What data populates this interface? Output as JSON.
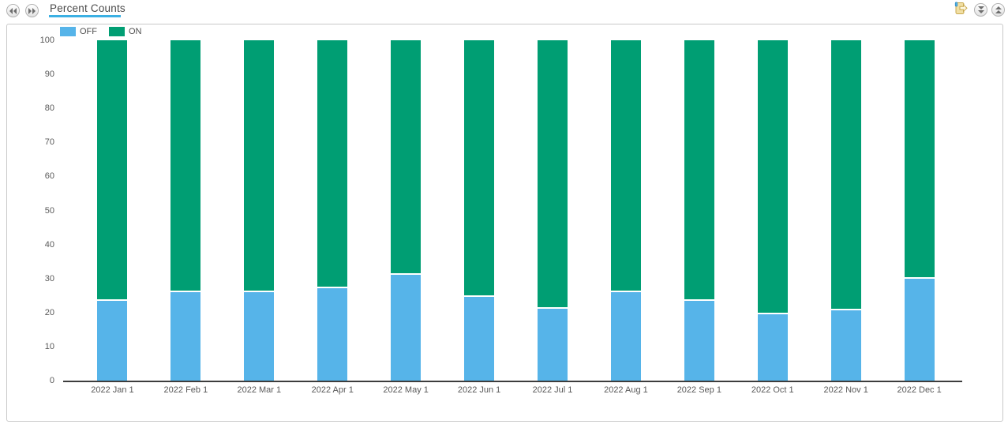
{
  "toolbar": {
    "tab_label": "Percent Counts",
    "accent_color": "#3bb0e3"
  },
  "icons": {
    "nav_back": "double-chevron-left-icon",
    "nav_forward": "double-chevron-right-icon",
    "export": "export-icon",
    "collapse": "double-chevron-down-icon",
    "expand": "double-chevron-up-icon"
  },
  "colors": {
    "off_series": "#56B4E9",
    "on_series": "#009E73",
    "axis_line": "#3d3d3d",
    "tick_text": "#595959"
  },
  "chart_data": {
    "type": "bar",
    "subtype": "stacked-percent-column",
    "title": "Percent Counts",
    "xlabel": "",
    "ylabel": "",
    "ylim": [
      0,
      100
    ],
    "ytick_step": 10,
    "yticks": [
      0,
      10,
      20,
      30,
      40,
      50,
      60,
      70,
      80,
      90,
      100
    ],
    "grid": false,
    "legend_position": "top-left",
    "categories": [
      "2022 Jan 1",
      "2022 Feb 1",
      "2022 Mar 1",
      "2022 Apr 1",
      "2022 May 1",
      "2022 Jun 1",
      "2022 Jul 1",
      "2022 Aug 1",
      "2022 Sep 1",
      "2022 Oct 1",
      "2022 Nov 1",
      "2022 Dec 1"
    ],
    "series": [
      {
        "name": "OFF",
        "color": "#56B4E9",
        "values": [
          24,
          26.5,
          26.5,
          27.5,
          31.5,
          25,
          21.5,
          26.5,
          24,
          20,
          21,
          30.5
        ]
      },
      {
        "name": "ON",
        "color": "#009E73",
        "values": [
          76,
          73.5,
          73.5,
          72.5,
          68.5,
          75,
          78.5,
          73.5,
          76,
          80,
          79,
          69.5
        ]
      }
    ]
  }
}
